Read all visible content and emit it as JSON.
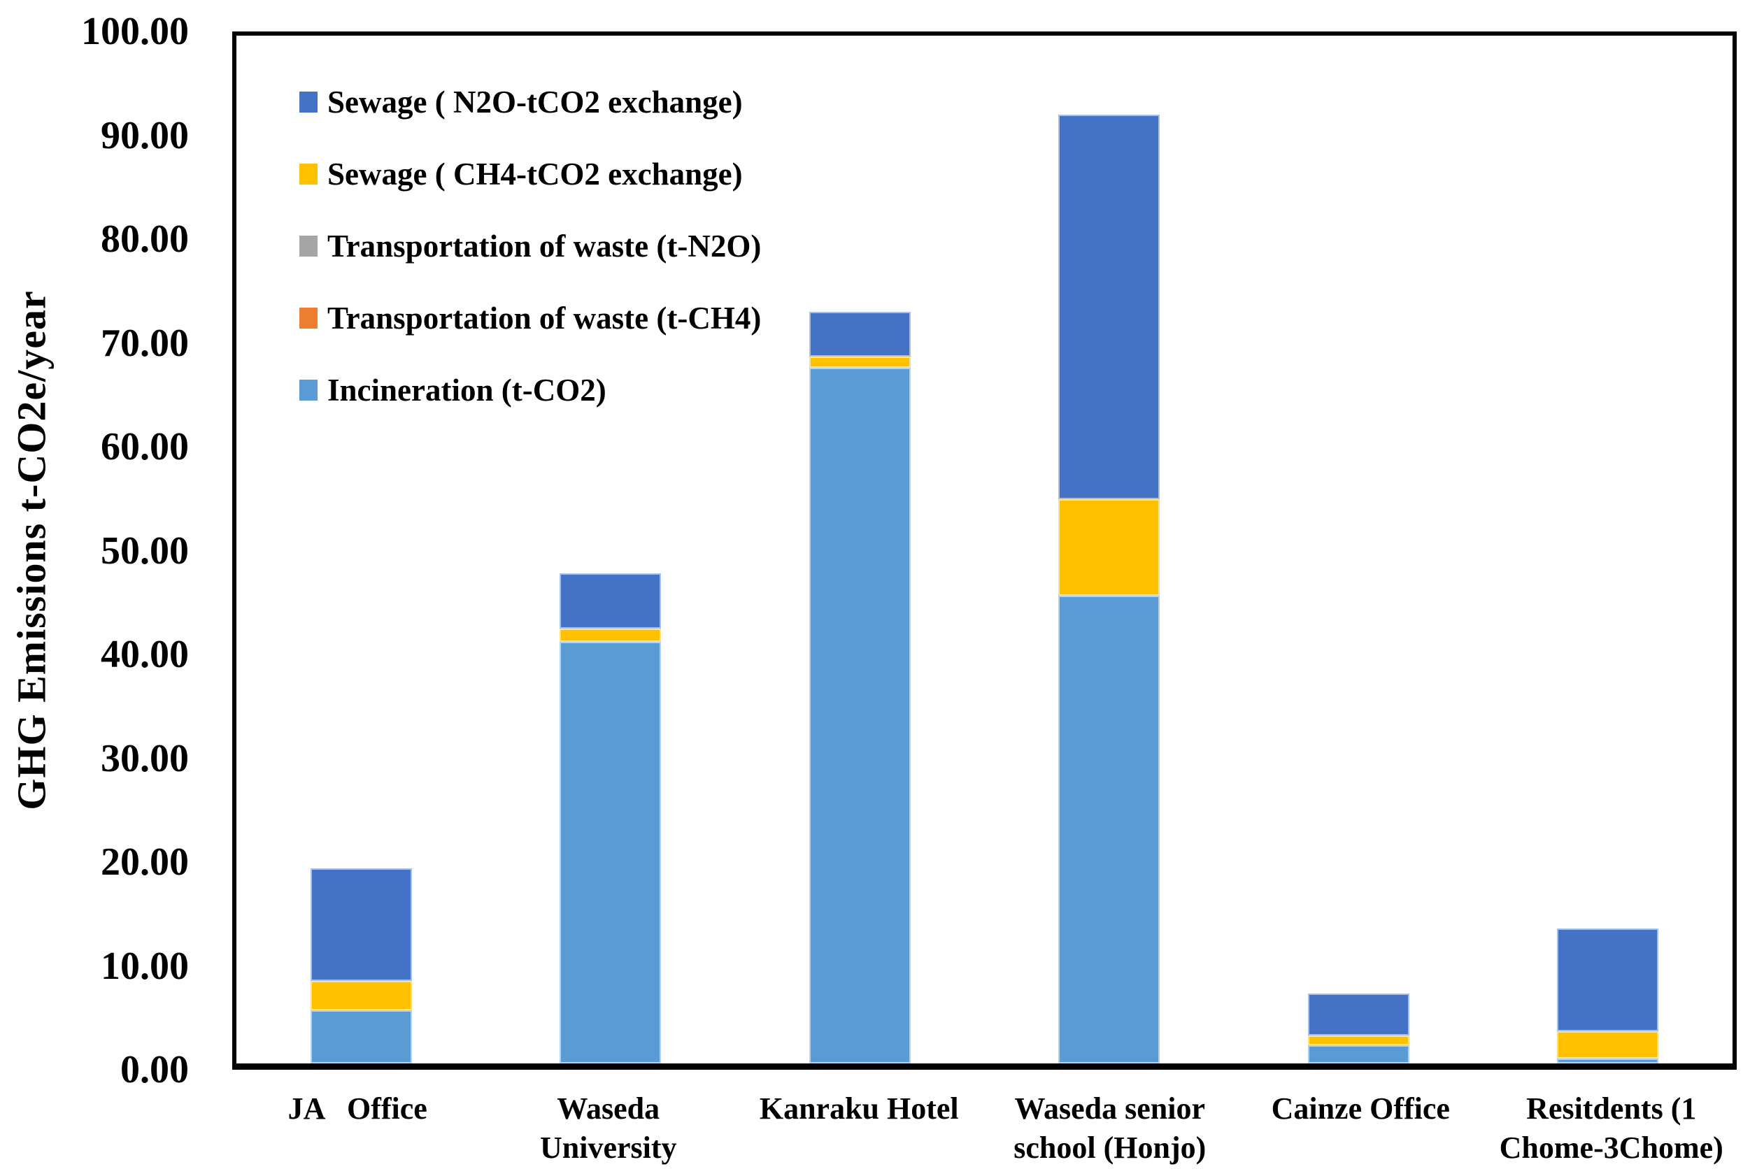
{
  "chart_data": {
    "type": "bar",
    "stacked": true,
    "title": "",
    "xlabel": "",
    "ylabel": "GHG Emissions t-CO2e/year",
    "ylim": [
      0,
      100
    ],
    "yticks": [
      "0.00",
      "10.00",
      "20.00",
      "30.00",
      "40.00",
      "50.00",
      "60.00",
      "70.00",
      "80.00",
      "90.00",
      "100.00"
    ],
    "grid": false,
    "legend_position": "inside-top-left-vertical",
    "background_color": "#FFFFFF",
    "axis_color": "#000000",
    "categories": [
      "JA Office",
      "Waseda University",
      "Kanraku Hotel",
      "Waseda senior school (Honjo)",
      "Cainze Office",
      "Resitdents (1 Chome-3Chome)"
    ],
    "category_label_lines": [
      [
        "JA   Office"
      ],
      [
        "Waseda",
        "University"
      ],
      [
        "Kanraku Hotel"
      ],
      [
        "Waseda senior",
        "school (Honjo)"
      ],
      [
        "Cainze Office"
      ],
      [
        "Resitdents (1",
        "Chome-3Chome)"
      ]
    ],
    "series": [
      {
        "name": "Incineration (t-CO2)",
        "color": "#5B9BD5",
        "values": [
          5.2,
          41.0,
          67.7,
          45.5,
          1.8,
          0.5
        ]
      },
      {
        "name": "Transportation of waste (t-CH4)",
        "color": "#ED7D31",
        "values": [
          0,
          0,
          0,
          0,
          0,
          0
        ]
      },
      {
        "name": "Transportation of waste (t-N2O)",
        "color": "#A5A5A5",
        "values": [
          0,
          0,
          0,
          0,
          0,
          0
        ]
      },
      {
        "name": "Sewage ( CH4-tCO2 exchange)",
        "color": "#FFC000",
        "values": [
          2.8,
          1.3,
          1.1,
          9.4,
          0.9,
          2.6
        ]
      },
      {
        "name": "Sewage ( N2O-tCO2 exchange)",
        "color": "#4472C4",
        "values": [
          11.0,
          5.4,
          4.3,
          37.4,
          4.1,
          10.0
        ]
      }
    ],
    "totals": [
      19.0,
      47.7,
      73.1,
      92.3,
      6.8,
      13.1
    ],
    "legend_items": [
      {
        "label": "Sewage ( N2O-tCO2 exchange)",
        "color": "#4472C4"
      },
      {
        "label": "Sewage ( CH4-tCO2 exchange)",
        "color": "#FFC000"
      },
      {
        "label": "Transportation of waste (t-N2O)",
        "color": "#A5A5A5"
      },
      {
        "label": "Transportation of waste (t-CH4)",
        "color": "#ED7D31"
      },
      {
        "label": "Incineration (t-CO2)",
        "color": "#5B9BD5"
      }
    ]
  }
}
